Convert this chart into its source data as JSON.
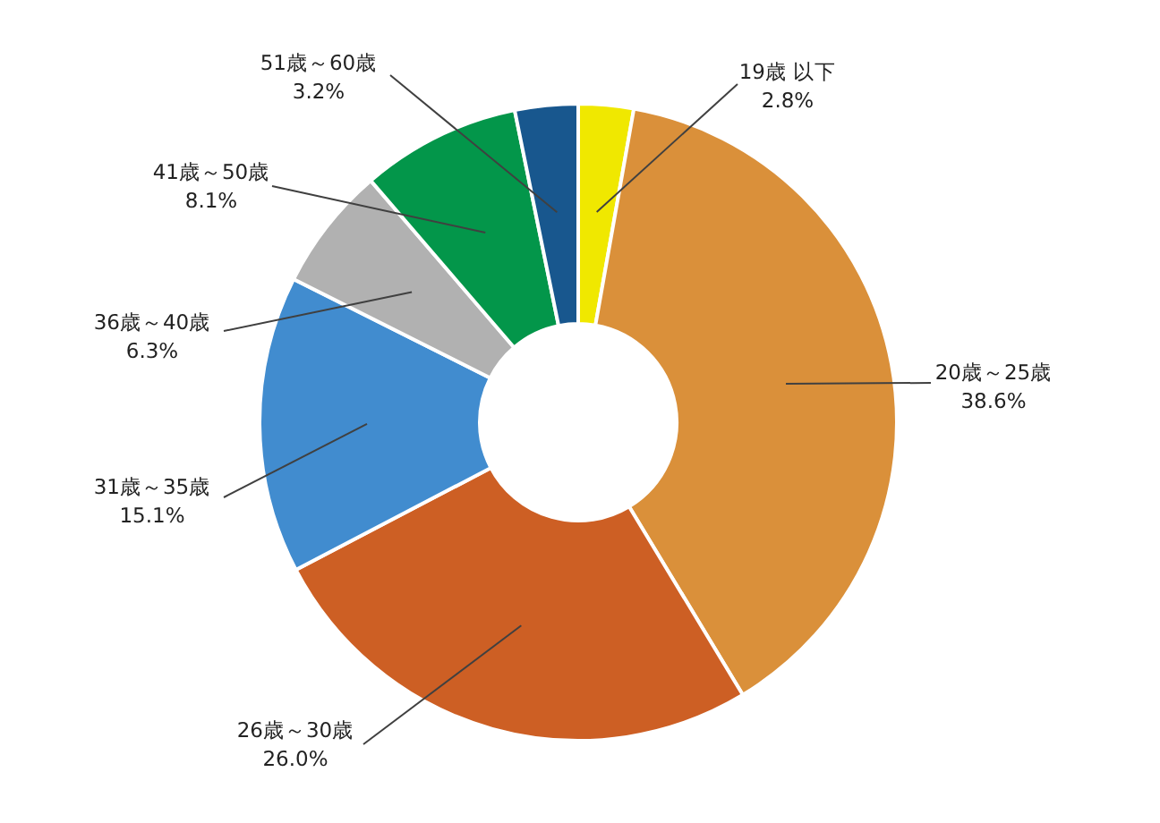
{
  "chart_data": {
    "type": "donut",
    "categories": [
      "19歳 以下",
      "20歳～25歳",
      "26歳～30歳",
      "31歳～35歳",
      "36歳～40歳",
      "41歳～50歳",
      "51歳～60歳"
    ],
    "values": [
      2.8,
      38.6,
      26.0,
      15.1,
      6.3,
      8.1,
      3.2
    ],
    "value_labels": [
      "2.8%",
      "38.6%",
      "26.0%",
      "15.1%",
      "6.3%",
      "8.1%",
      "3.2%"
    ],
    "colors": [
      "#f0e800",
      "#da903a",
      "#cd5f24",
      "#418ccf",
      "#b1b1b1",
      "#03964a",
      "#18578e"
    ],
    "legend": false
  }
}
